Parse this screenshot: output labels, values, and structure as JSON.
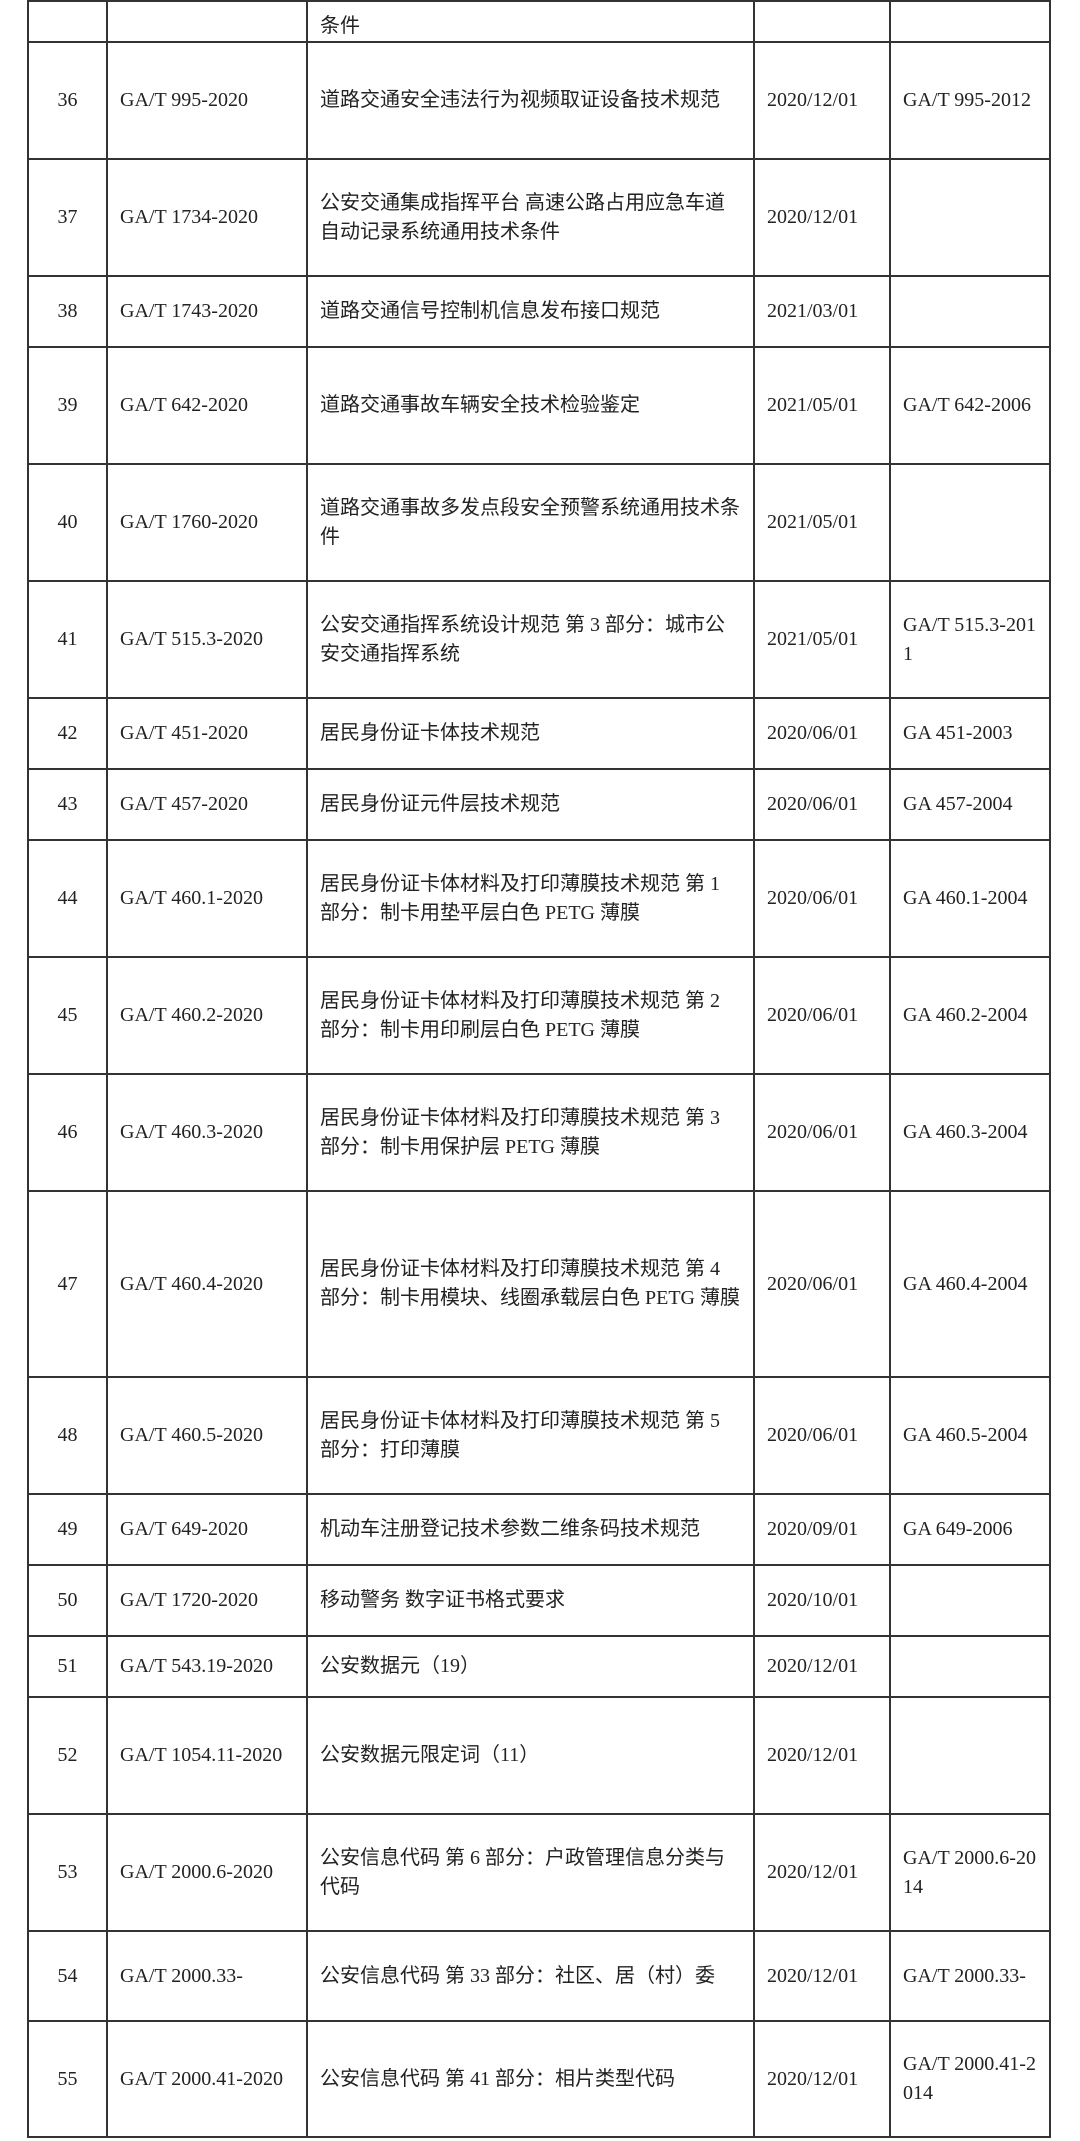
{
  "table": {
    "rows": [
      [
        null,
        null,
        "条件",
        null,
        null
      ],
      [
        "36",
        "GA/T 995-2020",
        "道路交通安全违法行为视频取证设备技术规范",
        "2020/12/01",
        "GA/T 995-2012"
      ],
      [
        "37",
        "GA/T 1734-2020",
        "公安交通集成指挥平台 高速公路占用应急车道自动记录系统通用技术条件",
        "2020/12/01",
        null
      ],
      [
        "38",
        "GA/T 1743-2020",
        "道路交通信号控制机信息发布接口规范",
        "2021/03/01",
        null
      ],
      [
        "39",
        "GA/T 642-2020",
        "道路交通事故车辆安全技术检验鉴定",
        "2021/05/01",
        "GA/T 642-2006"
      ],
      [
        "40",
        "GA/T 1760-2020",
        "道路交通事故多发点段安全预警系统通用技术条件",
        "2021/05/01",
        null
      ],
      [
        "41",
        "GA/T 515.3-2020",
        "公安交通指挥系统设计规范 第 3 部分：城市公安交通指挥系统",
        "2021/05/01",
        "GA/T 515.3-2011"
      ],
      [
        "42",
        "GA/T 451-2020",
        "居民身份证卡体技术规范",
        "2020/06/01",
        "GA 451-2003"
      ],
      [
        "43",
        "GA/T 457-2020",
        "居民身份证元件层技术规范",
        "2020/06/01",
        "GA 457-2004"
      ],
      [
        "44",
        "GA/T 460.1-2020",
        "居民身份证卡体材料及打印薄膜技术规范 第 1 部分：制卡用垫平层白色 PETG 薄膜",
        "2020/06/01",
        "GA 460.1-2004"
      ],
      [
        "45",
        "GA/T 460.2-2020",
        "居民身份证卡体材料及打印薄膜技术规范 第 2 部分：制卡用印刷层白色 PETG 薄膜",
        "2020/06/01",
        "GA 460.2-2004"
      ],
      [
        "46",
        "GA/T 460.3-2020",
        "居民身份证卡体材料及打印薄膜技术规范 第 3 部分：制卡用保护层 PETG 薄膜",
        "2020/06/01",
        "GA 460.3-2004"
      ],
      [
        "47",
        "GA/T 460.4-2020",
        "居民身份证卡体材料及打印薄膜技术规范 第 4 部分：制卡用模块、线圈承载层白色 PETG 薄膜",
        "2020/06/01",
        "GA 460.4-2004"
      ],
      [
        "48",
        "GA/T 460.5-2020",
        "居民身份证卡体材料及打印薄膜技术规范 第 5 部分：打印薄膜",
        "2020/06/01",
        "GA 460.5-2004"
      ],
      [
        "49",
        "GA/T 649-2020",
        "机动车注册登记技术参数二维条码技术规范",
        "2020/09/01",
        "GA 649-2006"
      ],
      [
        "50",
        "GA/T 1720-2020",
        "移动警务 数字证书格式要求",
        "2020/10/01",
        null
      ],
      [
        "51",
        "GA/T 543.19-2020",
        "公安数据元（19）",
        "2020/12/01",
        null
      ],
      [
        "52",
        "GA/T 1054.11-2020",
        "公安数据元限定词（11）",
        "2020/12/01",
        null
      ],
      [
        "53",
        "GA/T 2000.6-2020",
        "公安信息代码 第 6 部分：户政管理信息分类与代码",
        "2020/12/01",
        "GA/T 2000.6-2014"
      ],
      [
        "54",
        "GA/T 2000.33-",
        "公安信息代码 第 33 部分：社区、居（村）委",
        "2020/12/01",
        "GA/T 2000.33-"
      ],
      [
        "55",
        "GA/T 2000.41-2020",
        "公安信息代码 第 41 部分：相片类型代码",
        "2020/12/01",
        "GA/T 2000.41-2014"
      ]
    ]
  }
}
